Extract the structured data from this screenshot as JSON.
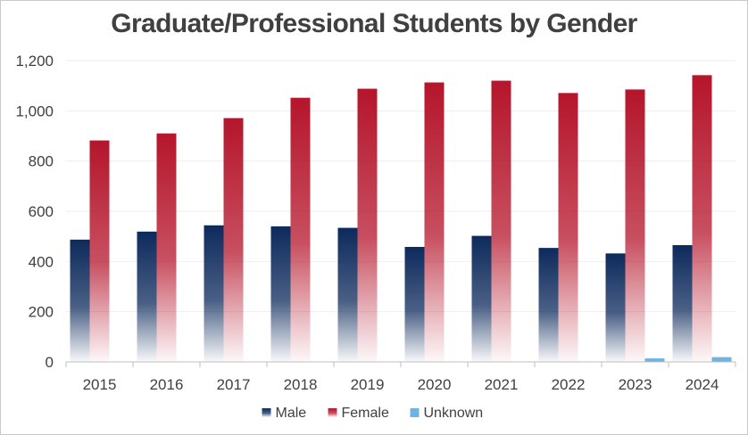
{
  "chart_data": {
    "type": "bar",
    "title": "Graduate/Professional Students by Gender",
    "categories": [
      "2015",
      "2016",
      "2017",
      "2018",
      "2019",
      "2020",
      "2021",
      "2022",
      "2023",
      "2024"
    ],
    "series": [
      {
        "name": "Male",
        "values": [
          487,
          519,
          544,
          540,
          534,
          458,
          502,
          454,
          432,
          465
        ],
        "color": "#0d2a5c"
      },
      {
        "name": "Female",
        "values": [
          882,
          910,
          971,
          1052,
          1088,
          1113,
          1120,
          1071,
          1085,
          1142
        ],
        "color": "#b5152b"
      },
      {
        "name": "Unknown",
        "values": [
          0,
          0,
          0,
          0,
          0,
          0,
          0,
          0,
          14,
          19
        ],
        "color": "#6fb3e0"
      }
    ],
    "ylim": [
      0,
      1200
    ],
    "yticks": [
      "0",
      "200",
      "400",
      "600",
      "800",
      "1,000",
      "1,200"
    ],
    "ytick_values": [
      0,
      200,
      400,
      600,
      800,
      1000,
      1200
    ],
    "grid": true,
    "legend": "bottom-center"
  }
}
